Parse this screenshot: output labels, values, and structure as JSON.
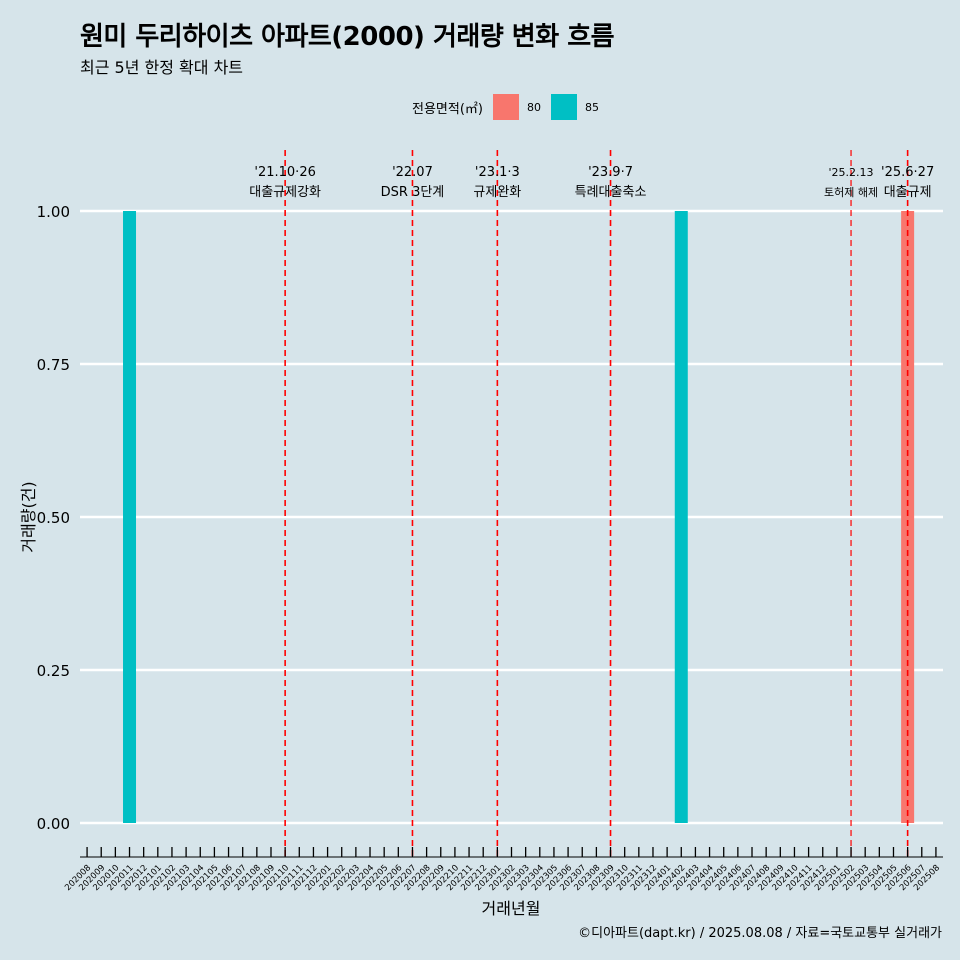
{
  "title": "원미 두리하이츠 아파트(2000) 거래량 변화 흐름",
  "subtitle": "최근 5년 한정 확대 차트",
  "caption": "©디아파트(dapt.kr) / 2025.08.08 / 자료=국토교통부 실거래가",
  "legend": {
    "title": "전용면적(㎡)",
    "items": [
      {
        "label": "80",
        "color": "#f8766d"
      },
      {
        "label": "85",
        "color": "#00bfc4"
      }
    ]
  },
  "chart_data": {
    "type": "bar",
    "xlabel": "거래년월",
    "ylabel": "거래량(건)",
    "ylim": [
      0,
      1
    ],
    "yticks": [
      "0.00",
      "0.25",
      "0.50",
      "0.75",
      "1.00"
    ],
    "grid": "horizontal",
    "legend_position": "top",
    "categories": [
      "202008",
      "202009",
      "202010",
      "202011",
      "202012",
      "202101",
      "202102",
      "202103",
      "202104",
      "202105",
      "202106",
      "202107",
      "202108",
      "202109",
      "202110",
      "202111",
      "202112",
      "202201",
      "202202",
      "202203",
      "202204",
      "202205",
      "202206",
      "202207",
      "202208",
      "202209",
      "202210",
      "202211",
      "202212",
      "202301",
      "202302",
      "202303",
      "202304",
      "202305",
      "202306",
      "202307",
      "202308",
      "202309",
      "202310",
      "202311",
      "202312",
      "202401",
      "202402",
      "202403",
      "202404",
      "202405",
      "202406",
      "202407",
      "202408",
      "202409",
      "202410",
      "202411",
      "202412",
      "202501",
      "202502",
      "202503",
      "202504",
      "202505",
      "202506",
      "202507",
      "202508"
    ],
    "series": [
      {
        "name": "80",
        "color": "#f8766d",
        "points": [
          {
            "x": "202506",
            "y": 1
          }
        ]
      },
      {
        "name": "85",
        "color": "#00bfc4",
        "points": [
          {
            "x": "202011",
            "y": 1
          },
          {
            "x": "202402",
            "y": 1
          }
        ]
      }
    ],
    "annotations": [
      {
        "x": "202110",
        "date": "'21.10·26",
        "label": "대출규제강화"
      },
      {
        "x": "202207",
        "date": "'22.07",
        "label": "DSR 3단계"
      },
      {
        "x": "202301",
        "date": "'23.1·3",
        "label": "규제완화"
      },
      {
        "x": "202309",
        "date": "'23.9·7",
        "label": "특례대출축소"
      },
      {
        "x": "202502",
        "date": "'25.2.13",
        "label": "토허제 해제",
        "small": true
      },
      {
        "x": "202506",
        "date": "'25.6·27",
        "label": "대출규제"
      }
    ]
  }
}
